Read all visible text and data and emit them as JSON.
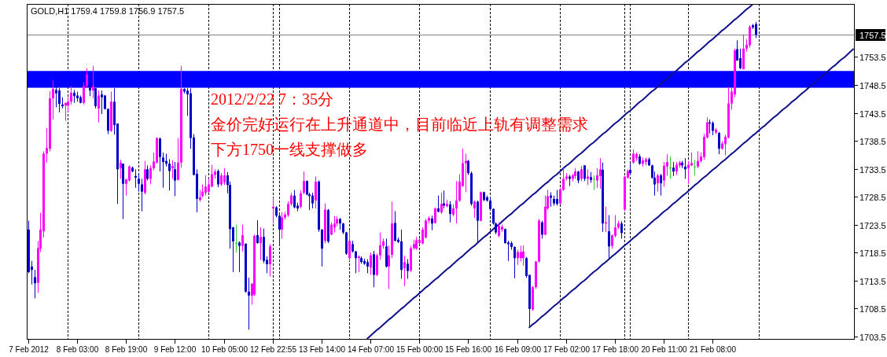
{
  "chart_data": {
    "type": "candlestick",
    "title": "GOLD,H1 1759.4 1759.8 1756.9 1757.5",
    "annotations": [
      "2012/2/22 7：35分",
      "金价完好运行在上升通道中，目前临近上轨有调整需求",
      "下方1750一线支撑做多"
    ],
    "categories": [
      "7 Feb 2012",
      null,
      null,
      null,
      null,
      null,
      null,
      null,
      null,
      null,
      null,
      null,
      null,
      null,
      null,
      null,
      "8 Feb 03:00",
      null,
      null,
      null,
      null,
      null,
      null,
      null,
      null,
      null,
      null,
      null,
      null,
      null,
      null,
      null,
      "8 Feb 19:00",
      null,
      null,
      null,
      null,
      null,
      null,
      null,
      null,
      null,
      null,
      null,
      null,
      null,
      null,
      null,
      "9 Feb 12:00",
      null,
      null,
      null,
      null,
      null,
      null,
      null,
      null,
      null,
      null,
      null,
      null,
      null,
      null,
      null,
      "10 Feb 05:00",
      null,
      null,
      null,
      null,
      null,
      null,
      null,
      null,
      null,
      null,
      null,
      null,
      null,
      null,
      null,
      "12 Feb 22:55",
      null,
      null,
      null,
      null,
      null,
      null,
      null,
      null,
      null,
      null,
      null,
      null,
      null,
      null,
      null,
      "13 Feb 14:00",
      null,
      null,
      null,
      null,
      null,
      null,
      null,
      null,
      null,
      null,
      null,
      null,
      null,
      null,
      null,
      "14 Feb 07:00",
      null,
      null,
      null,
      null,
      null,
      null,
      null,
      null,
      null,
      null,
      null,
      null,
      null,
      null,
      null,
      "15 Feb 00:00",
      null,
      null,
      null,
      null,
      null,
      null,
      null,
      null,
      null,
      null,
      null,
      null,
      null,
      null,
      null,
      "15 Feb 16:00",
      null,
      null,
      null,
      null,
      null,
      null,
      null,
      null,
      null,
      null,
      null,
      null,
      null,
      null,
      null,
      "16 Feb 09:00",
      null,
      null,
      null,
      null,
      null,
      null,
      null,
      null,
      null,
      null,
      null,
      null,
      null,
      null,
      null,
      "17 Feb 02:00",
      null,
      null,
      null,
      null,
      null,
      null,
      null,
      null,
      null,
      null,
      null,
      null,
      null,
      null,
      null,
      "17 Feb 18:00",
      null,
      null,
      null,
      null,
      null,
      null,
      null,
      null,
      null,
      null,
      null,
      null,
      null,
      null,
      null,
      "20 Feb 11:00",
      null,
      null,
      null,
      null,
      null,
      null,
      null,
      null,
      null,
      null,
      null,
      null,
      null,
      null,
      null,
      "21 Feb 08:00",
      null,
      null,
      null,
      null,
      null,
      null,
      null,
      null,
      null,
      null,
      null,
      null,
      null,
      null,
      null,
      null,
      null,
      null,
      null,
      null,
      null,
      null,
      null,
      null,
      null,
      null,
      null,
      null,
      null,
      null,
      null,
      null,
      null,
      null,
      null,
      null,
      null,
      null,
      null,
      null,
      null,
      null,
      null,
      null,
      null,
      null
    ],
    "ohlc": [
      [
        1722.6,
        1724.2,
        1714.8,
        1715.0
      ],
      [
        1716.0,
        1717.0,
        1712.8,
        1715.4
      ],
      [
        1714.1,
        1715.4,
        1710.3,
        1713.0
      ],
      [
        1713.1,
        1720.6,
        1711.3,
        1719.3
      ],
      [
        1719.2,
        1725.6,
        1718.6,
        1722.6
      ],
      [
        1722.3,
        1736.6,
        1721.2,
        1736.2
      ],
      [
        1736.2,
        1740.8,
        1734.6,
        1737.2
      ],
      [
        1737.1,
        1747.4,
        1736.6,
        1746.1
      ],
      [
        1746.1,
        1749.3,
        1742.3,
        1747.8
      ],
      [
        1747.6,
        1748.3,
        1744.5,
        1747.0
      ],
      [
        1747.5,
        1747.9,
        1743.6,
        1745.1
      ],
      [
        1745.0,
        1746.3,
        1744.3,
        1744.7
      ],
      [
        1744.8,
        1745.3,
        1742.1,
        1745.3
      ],
      [
        1744.8,
        1746.3,
        1743.7,
        1745.5
      ],
      [
        1745.5,
        1748.3,
        1745.0,
        1747.1
      ],
      [
        1747.1,
        1747.6,
        1745.3,
        1746.5
      ],
      [
        1746.6,
        1747.3,
        1745.5,
        1746.1
      ],
      [
        1746.3,
        1746.6,
        1745.2,
        1745.3
      ],
      [
        1745.3,
        1749.0,
        1745.0,
        1748.3
      ],
      [
        1748.3,
        1751.5,
        1748.0,
        1750.4
      ],
      [
        1748.0,
        1748.8,
        1746.5,
        1747.5
      ],
      [
        1747.5,
        1751.9,
        1746.1,
        1748.3
      ],
      [
        1747.9,
        1748.0,
        1744.3,
        1744.7
      ],
      [
        1744.3,
        1747.5,
        1741.8,
        1746.6
      ],
      [
        1746.8,
        1747.5,
        1743.3,
        1746.3
      ],
      [
        1746.6,
        1746.7,
        1744.1,
        1744.2
      ],
      [
        1744.2,
        1744.3,
        1739.7,
        1740.3
      ],
      [
        1740.3,
        1747.3,
        1740.1,
        1745.5
      ],
      [
        1745.5,
        1747.9,
        1739.6,
        1741.3
      ],
      [
        1741.6,
        1741.6,
        1727.2,
        1733.4
      ],
      [
        1733.6,
        1735.1,
        1731.7,
        1734.6
      ],
      [
        1734.4,
        1734.4,
        1724.5,
        1730.8
      ],
      [
        1730.8,
        1731.7,
        1728.7,
        1731.6
      ],
      [
        1731.4,
        1734.1,
        1731.2,
        1733.9
      ],
      [
        1733.7,
        1733.9,
        1732.9,
        1733.0
      ],
      [
        1732.2,
        1733.4,
        1730.1,
        1731.9
      ],
      [
        1731.7,
        1732.6,
        1729.4,
        1730.8
      ],
      [
        1730.7,
        1731.7,
        1725.9,
        1729.4
      ],
      [
        1729.2,
        1734.9,
        1728.9,
        1733.4
      ],
      [
        1733.4,
        1734.1,
        1731.4,
        1731.7
      ],
      [
        1731.7,
        1734.1,
        1730.7,
        1733.6
      ],
      [
        1733.6,
        1736.4,
        1733.2,
        1734.8
      ],
      [
        1734.6,
        1739.1,
        1734.4,
        1739.0
      ],
      [
        1738.9,
        1739.1,
        1733.0,
        1735.6
      ],
      [
        1735.5,
        1736.4,
        1730.1,
        1734.7
      ],
      [
        1734.9,
        1736.2,
        1733.9,
        1734.4
      ],
      [
        1734.4,
        1735.2,
        1729.6,
        1733.1
      ],
      [
        1733.6,
        1735.0,
        1731.7,
        1734.0
      ],
      [
        1733.4,
        1734.7,
        1728.6,
        1731.4
      ],
      [
        1731.5,
        1739.0,
        1731.4,
        1734.6
      ],
      [
        1734.6,
        1751.9,
        1733.7,
        1747.8
      ],
      [
        1747.8,
        1747.9,
        1747.0,
        1747.3
      ],
      [
        1747.5,
        1747.9,
        1743.0,
        1746.8
      ],
      [
        1747.0,
        1747.9,
        1737.1,
        1739.0
      ],
      [
        1739.1,
        1739.7,
        1732.3,
        1732.4
      ],
      [
        1732.6,
        1733.4,
        1725.7,
        1728.1
      ],
      [
        1727.9,
        1729.7,
        1727.6,
        1728.4
      ],
      [
        1728.6,
        1730.7,
        1728.4,
        1729.4
      ],
      [
        1729.2,
        1732.3,
        1728.7,
        1730.3
      ],
      [
        1729.4,
        1731.7,
        1729.2,
        1730.7
      ],
      [
        1730.3,
        1734.2,
        1730.2,
        1732.5
      ],
      [
        1732.4,
        1733.4,
        1731.7,
        1733.0
      ],
      [
        1733.1,
        1733.4,
        1730.2,
        1730.7
      ],
      [
        1730.7,
        1732.7,
        1730.4,
        1732.3
      ],
      [
        1731.1,
        1733.6,
        1730.6,
        1732.3
      ],
      [
        1732.3,
        1732.9,
        1729.1,
        1730.6
      ],
      [
        1730.6,
        1731.2,
        1719.2,
        1722.7
      ],
      [
        1723.0,
        1723.1,
        1715.0,
        1720.5
      ],
      [
        1720.2,
        1723.5,
        1718.5,
        1720.2
      ],
      [
        1720.3,
        1720.5,
        1715.0,
        1719.7
      ],
      [
        1719.7,
        1723.5,
        1718.7,
        1721.6
      ],
      [
        1720.1,
        1720.1,
        1711.3,
        1711.5
      ],
      [
        1711.5,
        1714.0,
        1704.7,
        1710.8
      ],
      [
        1710.8,
        1713.0,
        1709.2,
        1712.9
      ],
      [
        1711.0,
        1721.7,
        1710.7,
        1721.5
      ],
      [
        1721.6,
        1724.3,
        1720.1,
        1720.2
      ],
      [
        1720.2,
        1723.0,
        1717.2,
        1721.3
      ],
      [
        1721.3,
        1722.8,
        1716.6,
        1717.0
      ],
      [
        1717.2,
        1717.8,
        1714.8,
        1716.4
      ],
      [
        1716.4,
        1720.0,
        1714.2,
        1719.6
      ],
      [
        1726.4,
        1728.3,
        1723.7,
        1726.7
      ],
      [
        1726.6,
        1726.8,
        1724.8,
        1725.1
      ],
      [
        1725.1,
        1725.7,
        1719.8,
        1722.6
      ],
      [
        1722.6,
        1725.7,
        1721.0,
        1724.8
      ],
      [
        1724.8,
        1725.8,
        1724.4,
        1725.3
      ],
      [
        1725.2,
        1727.7,
        1724.9,
        1727.2
      ],
      [
        1727.2,
        1729.2,
        1726.9,
        1728.7
      ],
      [
        1728.7,
        1729.7,
        1726.4,
        1726.6
      ],
      [
        1726.9,
        1727.4,
        1725.9,
        1726.4
      ],
      [
        1726.7,
        1729.6,
        1726.4,
        1729.1
      ],
      [
        1729.2,
        1733.0,
        1728.9,
        1731.3
      ],
      [
        1731.3,
        1731.4,
        1728.7,
        1728.9
      ],
      [
        1728.9,
        1729.2,
        1726.1,
        1728.6
      ],
      [
        1728.7,
        1729.2,
        1726.4,
        1727.3
      ],
      [
        1727.8,
        1732.1,
        1726.4,
        1731.2
      ],
      [
        1731.2,
        1731.4,
        1722.2,
        1722.6
      ],
      [
        1722.6,
        1722.7,
        1716.0,
        1719.2
      ],
      [
        1720.6,
        1727.3,
        1720.2,
        1726.2
      ],
      [
        1726.1,
        1726.3,
        1720.2,
        1720.5
      ],
      [
        1721.7,
        1723.9,
        1721.6,
        1723.5
      ],
      [
        1723.0,
        1725.0,
        1722.1,
        1723.7
      ],
      [
        1723.7,
        1725.0,
        1723.2,
        1724.5
      ],
      [
        1724.5,
        1724.7,
        1722.6,
        1723.7
      ],
      [
        1723.7,
        1723.8,
        1721.8,
        1722.1
      ],
      [
        1722.1,
        1722.2,
        1718.1,
        1718.3
      ],
      [
        1717.5,
        1722.5,
        1717.0,
        1720.6
      ],
      [
        1720.0,
        1720.6,
        1718.5,
        1718.7
      ],
      [
        1718.7,
        1718.8,
        1714.8,
        1717.5
      ],
      [
        1717.5,
        1718.0,
        1715.0,
        1717.8
      ],
      [
        1717.5,
        1717.8,
        1716.5,
        1716.8
      ],
      [
        1717.0,
        1717.4,
        1716.3,
        1716.5
      ],
      [
        1716.8,
        1717.3,
        1714.8,
        1716.0
      ],
      [
        1715.8,
        1718.5,
        1714.5,
        1718.0
      ],
      [
        1718.2,
        1718.8,
        1712.3,
        1714.5
      ],
      [
        1714.5,
        1718.3,
        1714.3,
        1718.0
      ],
      [
        1718.0,
        1722.1,
        1717.2,
        1719.8
      ],
      [
        1719.7,
        1721.0,
        1719.2,
        1720.5
      ],
      [
        1719.6,
        1721.0,
        1715.8,
        1716.0
      ],
      [
        1716.0,
        1719.7,
        1712.0,
        1718.0
      ],
      [
        1718.1,
        1727.6,
        1717.5,
        1723.7
      ],
      [
        1723.8,
        1725.9,
        1720.5,
        1720.6
      ],
      [
        1720.8,
        1721.2,
        1720.2,
        1720.4
      ],
      [
        1720.5,
        1722.6,
        1713.8,
        1715.4
      ],
      [
        1715.7,
        1717.9,
        1712.5,
        1716.8
      ],
      [
        1716.5,
        1717.3,
        1713.8,
        1715.2
      ],
      [
        1715.3,
        1719.7,
        1715.0,
        1719.3
      ],
      [
        1719.3,
        1720.8,
        1719.0,
        1720.0
      ],
      [
        1719.2,
        1721.3,
        1719.0,
        1720.7
      ],
      [
        1720.2,
        1721.1,
        1720.0,
        1720.8
      ],
      [
        1720.1,
        1723.0,
        1720.0,
        1722.6
      ],
      [
        1721.2,
        1724.5,
        1721.0,
        1724.2
      ],
      [
        1724.2,
        1725.0,
        1723.7,
        1724.7
      ],
      [
        1724.6,
        1725.1,
        1722.5,
        1723.7
      ],
      [
        1723.8,
        1726.6,
        1723.7,
        1726.4
      ],
      [
        1726.4,
        1728.7,
        1725.7,
        1725.8
      ],
      [
        1725.7,
        1729.2,
        1725.4,
        1727.2
      ],
      [
        1727.3,
        1729.6,
        1726.4,
        1726.9
      ],
      [
        1726.8,
        1727.9,
        1726.6,
        1727.2
      ],
      [
        1727.1,
        1727.7,
        1723.9,
        1725.4
      ],
      [
        1725.3,
        1727.1,
        1725.0,
        1726.4
      ],
      [
        1726.4,
        1731.3,
        1723.7,
        1727.8
      ],
      [
        1727.8,
        1732.5,
        1727.6,
        1731.2
      ],
      [
        1730.4,
        1737.1,
        1730.3,
        1734.5
      ],
      [
        1734.5,
        1736.2,
        1729.3,
        1734.9
      ],
      [
        1734.9,
        1735.1,
        1732.4,
        1732.7
      ],
      [
        1732.7,
        1733.0,
        1726.9,
        1727.2
      ],
      [
        1726.4,
        1727.8,
        1724.7,
        1727.6
      ],
      [
        1727.6,
        1727.8,
        1720.3,
        1724.2
      ],
      [
        1724.2,
        1729.4,
        1724.1,
        1729.3
      ],
      [
        1729.3,
        1729.4,
        1727.7,
        1727.9
      ],
      [
        1728.4,
        1728.7,
        1727.6,
        1727.8
      ],
      [
        1727.8,
        1728.4,
        1726.1,
        1726.3
      ],
      [
        1726.3,
        1726.4,
        1723.5,
        1723.7
      ],
      [
        1723.7,
        1723.9,
        1721.8,
        1722.1
      ],
      [
        1721.5,
        1723.9,
        1721.2,
        1723.3
      ],
      [
        1722.6,
        1723.5,
        1722.2,
        1723.1
      ],
      [
        1722.7,
        1722.8,
        1720.1,
        1720.2
      ],
      [
        1720.3,
        1720.6,
        1717.0,
        1720.0
      ],
      [
        1720.2,
        1720.5,
        1719.0,
        1719.5
      ],
      [
        1719.5,
        1719.6,
        1713.9,
        1717.5
      ],
      [
        1717.5,
        1719.0,
        1716.3,
        1718.6
      ],
      [
        1717.5,
        1719.7,
        1716.9,
        1718.6
      ],
      [
        1717.5,
        1719.8,
        1716.2,
        1718.7
      ],
      [
        1717.5,
        1717.7,
        1714.0,
        1714.3
      ],
      [
        1714.5,
        1714.5,
        1705.1,
        1708.4
      ],
      [
        1708.3,
        1712.5,
        1708.1,
        1712.3
      ],
      [
        1712.3,
        1717.0,
        1712.0,
        1716.9
      ],
      [
        1716.9,
        1724.5,
        1716.7,
        1724.2
      ],
      [
        1723.9,
        1724.2,
        1721.0,
        1721.7
      ],
      [
        1721.7,
        1728.7,
        1721.6,
        1726.7
      ],
      [
        1726.4,
        1729.7,
        1726.1,
        1728.6
      ],
      [
        1728.7,
        1729.3,
        1726.7,
        1728.3
      ],
      [
        1728.1,
        1728.7,
        1726.9,
        1727.3
      ],
      [
        1728.1,
        1729.7,
        1726.9,
        1727.2
      ],
      [
        1727.3,
        1730.1,
        1727.1,
        1729.8
      ],
      [
        1729.7,
        1733.6,
        1729.6,
        1731.7
      ],
      [
        1731.7,
        1732.7,
        1731.4,
        1732.1
      ],
      [
        1732.1,
        1732.4,
        1730.4,
        1731.7
      ],
      [
        1731.7,
        1732.6,
        1731.2,
        1732.3
      ],
      [
        1732.2,
        1733.6,
        1731.7,
        1733.0
      ],
      [
        1733.0,
        1733.1,
        1730.9,
        1731.4
      ],
      [
        1731.7,
        1734.0,
        1731.3,
        1733.4
      ],
      [
        1734.1,
        1734.1,
        1731.3,
        1731.7
      ],
      [
        1731.7,
        1733.4,
        1730.6,
        1732.1
      ],
      [
        1732.0,
        1732.9,
        1731.0,
        1731.5
      ],
      [
        1731.7,
        1732.3,
        1729.7,
        1731.7
      ],
      [
        1731.4,
        1733.6,
        1730.1,
        1732.3
      ],
      [
        1732.2,
        1735.4,
        1729.9,
        1733.4
      ],
      [
        1733.3,
        1734.6,
        1722.2,
        1723.7
      ],
      [
        1723.7,
        1726.7,
        1722.2,
        1723.9
      ],
      [
        1722.3,
        1725.2,
        1717.4,
        1719.6
      ],
      [
        1719.7,
        1721.7,
        1719.2,
        1721.6
      ],
      [
        1721.5,
        1725.2,
        1721.2,
        1723.0
      ],
      [
        1723.0,
        1724.2,
        1722.7,
        1723.7
      ],
      [
        1723.7,
        1724.1,
        1721.0,
        1722.0
      ],
      [
        1726.2,
        1732.2,
        1725.9,
        1732.1
      ],
      [
        1731.9,
        1733.4,
        1731.7,
        1733.1
      ],
      [
        1733.3,
        1734.4,
        1732.4,
        1732.7
      ],
      [
        1734.6,
        1736.9,
        1734.4,
        1736.2
      ],
      [
        1735.4,
        1736.4,
        1734.9,
        1736.1
      ],
      [
        1735.7,
        1736.1,
        1734.2,
        1734.4
      ],
      [
        1734.4,
        1735.5,
        1733.9,
        1735.0
      ],
      [
        1734.7,
        1735.5,
        1734.1,
        1735.2
      ],
      [
        1735.2,
        1735.5,
        1734.0,
        1734.1
      ],
      [
        1734.1,
        1734.2,
        1731.7,
        1731.9
      ],
      [
        1731.9,
        1733.0,
        1728.7,
        1730.7
      ],
      [
        1730.9,
        1732.6,
        1729.4,
        1732.3
      ],
      [
        1732.3,
        1732.6,
        1728.7,
        1730.9
      ],
      [
        1731.4,
        1734.7,
        1730.3,
        1734.0
      ],
      [
        1733.9,
        1736.1,
        1732.3,
        1734.7
      ],
      [
        1733.7,
        1735.7,
        1731.7,
        1733.7
      ],
      [
        1733.7,
        1734.7,
        1732.2,
        1733.0
      ],
      [
        1733.0,
        1734.7,
        1732.4,
        1734.2
      ],
      [
        1734.1,
        1734.9,
        1733.7,
        1734.6
      ],
      [
        1734.6,
        1734.9,
        1733.6,
        1734.1
      ],
      [
        1733.9,
        1735.4,
        1731.7,
        1733.4
      ],
      [
        1733.6,
        1734.9,
        1730.8,
        1734.2
      ],
      [
        1734.1,
        1736.4,
        1734.0,
        1734.5
      ],
      [
        1733.9,
        1735.1,
        1732.3,
        1733.9
      ],
      [
        1733.9,
        1736.6,
        1733.6,
        1734.9
      ],
      [
        1734.9,
        1736.4,
        1734.6,
        1735.7
      ],
      [
        1735.6,
        1739.7,
        1735.1,
        1739.2
      ],
      [
        1739.1,
        1742.7,
        1738.9,
        1741.8
      ],
      [
        1741.8,
        1742.3,
        1739.8,
        1741.6
      ],
      [
        1741.7,
        1742.0,
        1739.5,
        1740.3
      ],
      [
        1740.0,
        1740.8,
        1739.7,
        1740.5
      ],
      [
        1739.9,
        1740.1,
        1736.1,
        1737.1
      ],
      [
        1737.1,
        1738.4,
        1736.9,
        1738.0
      ],
      [
        1737.9,
        1739.6,
        1735.9,
        1739.2
      ],
      [
        1739.1,
        1748.1,
        1738.9,
        1745.2
      ],
      [
        1745.2,
        1748.0,
        1744.1,
        1747.3
      ],
      [
        1746.8,
        1755.0,
        1746.3,
        1754.7
      ],
      [
        1754.9,
        1756.5,
        1752.8,
        1752.9
      ],
      [
        1753.3,
        1755.0,
        1751.3,
        1751.5
      ],
      [
        1751.3,
        1757.5,
        1751.3,
        1755.0
      ],
      [
        1755.0,
        1756.7,
        1754.5,
        1755.7
      ],
      [
        1755.6,
        1759.2,
        1755.2,
        1758.9
      ],
      [
        1759.2,
        1759.4,
        1758.5,
        1758.8
      ],
      [
        1759.4,
        1759.8,
        1756.9,
        1757.5
      ],
      null,
      null,
      null,
      null,
      null,
      null,
      null,
      null,
      null,
      null,
      null,
      null,
      null,
      null,
      null,
      null,
      null,
      null,
      null,
      null,
      null,
      null,
      null,
      null,
      null,
      null,
      null,
      null,
      null,
      null,
      null,
      null
    ],
    "colors": [
      "#0000c8",
      "#0000c8",
      "#0000c8",
      "#ff00ff",
      "#ff00ff",
      "#ff00ff",
      "#ff00ff",
      "#ff00ff",
      "#ff00ff",
      "#0000c8",
      "#0000c8",
      "#0000c8",
      "#ff00ff",
      "#ff00ff",
      "#ff00ff",
      "#0000c8",
      "#0000c8",
      "#0000c8",
      "#ff00ff",
      "#ff00ff",
      "#0000c8",
      "#ff00ff",
      "#0000c8",
      "#ff00ff",
      "#0000c8",
      "#0000c8",
      "#0000c8",
      "#ff00ff",
      "#0000c8",
      "#0000c8",
      "#ff00ff",
      "#0000c8",
      "#ff00ff",
      "#ff00ff",
      "#0000c8",
      "#0000c8",
      "#0000c8",
      "#0000c8",
      "#ff00ff",
      "#0000c8",
      "#ff00ff",
      "#ff00ff",
      "#ff00ff",
      "#0000c8",
      "#0000c8",
      "#0000c8",
      "#0000c8",
      "#ff00ff",
      "#0000c8",
      "#ff00ff",
      "#ff00ff",
      "#0000c8",
      "#0000c8",
      "#0000c8",
      "#0000c8",
      "#0000c8",
      "#ff00ff",
      "#ff00ff",
      "#ff00ff",
      "#ff00ff",
      "#ff00ff",
      "#ff00ff",
      "#0000c8",
      "#ff00ff",
      "#ff00ff",
      "#0000c8",
      "#0000c8",
      "#0000c8",
      "#33cc33",
      "#0000c8",
      "#ff00ff",
      "#0000c8",
      "#0000c8",
      "#ff00ff",
      "#ff00ff",
      "#0000c8",
      "#ff00ff",
      "#0000c8",
      "#0000c8",
      "#ff00ff",
      "#ff00ff",
      "#0000c8",
      "#0000c8",
      "#ff00ff",
      "#ff00ff",
      "#ff00ff",
      "#ff00ff",
      "#0000c8",
      "#0000c8",
      "#ff00ff",
      "#ff00ff",
      "#0000c8",
      "#0000c8",
      "#0000c8",
      "#ff00ff",
      "#0000c8",
      "#0000c8",
      "#ff00ff",
      "#0000c8",
      "#ff00ff",
      "#ff00ff",
      "#ff00ff",
      "#0000c8",
      "#0000c8",
      "#0000c8",
      "#ff00ff",
      "#0000c8",
      "#0000c8",
      "#ff00ff",
      "#0000c8",
      "#0000c8",
      "#0000c8",
      "#ff00ff",
      "#0000c8",
      "#ff00ff",
      "#ff00ff",
      "#ff00ff",
      "#0000c8",
      "#ff00ff",
      "#ff00ff",
      "#0000c8",
      "#0000c8",
      "#0000c8",
      "#ff00ff",
      "#0000c8",
      "#ff00ff",
      "#ff00ff",
      "#ff00ff",
      "#ff00ff",
      "#ff00ff",
      "#ff00ff",
      "#ff00ff",
      "#0000c8",
      "#ff00ff",
      "#0000c8",
      "#ff00ff",
      "#0000c8",
      "#ff00ff",
      "#0000c8",
      "#ff00ff",
      "#ff00ff",
      "#ff00ff",
      "#ff00ff",
      "#ff00ff",
      "#0000c8",
      "#0000c8",
      "#ff00ff",
      "#0000c8",
      "#ff00ff",
      "#0000c8",
      "#0000c8",
      "#0000c8",
      "#0000c8",
      "#0000c8",
      "#ff00ff",
      "#ff00ff",
      "#0000c8",
      "#0000c8",
      "#0000c8",
      "#0000c8",
      "#ff00ff",
      "#ff00ff",
      "#ff00ff",
      "#0000c8",
      "#0000c8",
      "#ff00ff",
      "#ff00ff",
      "#ff00ff",
      "#0000c8",
      "#ff00ff",
      "#ff00ff",
      "#0000c8",
      "#0000c8",
      "#0000c8",
      "#ff00ff",
      "#ff00ff",
      "#ff00ff",
      "#0000c8",
      "#ff00ff",
      "#ff00ff",
      "#0000c8",
      "#ff00ff",
      "#0000c8",
      "#ff00ff",
      "#0000c8",
      "#33cc33",
      "#ff00ff",
      "#ff00ff",
      "#0000c8",
      "#ff00ff",
      "#0000c8",
      "#ff00ff",
      "#ff00ff",
      "#ff00ff",
      "#0000c8",
      "#ff00ff",
      "#ff00ff",
      "#0000c8",
      "#ff00ff",
      "#ff00ff",
      "#0000c8",
      "#ff00ff",
      "#ff00ff",
      "#0000c8",
      "#0000c8",
      "#0000c8",
      "#ff00ff",
      "#0000c8",
      "#ff00ff",
      "#ff00ff",
      "#33cc33",
      "#0000c8",
      "#ff00ff",
      "#ff00ff",
      "#0000c8",
      "#0000c8",
      "#ff00ff",
      "#ff00ff",
      "#33cc33",
      "#ff00ff",
      "#ff00ff",
      "#ff00ff",
      "#ff00ff",
      "#0000c8",
      "#0000c8",
      "#ff00ff",
      "#0000c8",
      "#ff00ff",
      "#ff00ff",
      "#ff00ff",
      "#ff00ff",
      "#ff00ff",
      "#0000c8",
      "#0000c8",
      "#ff00ff",
      "#ff00ff",
      "#ff00ff",
      "#0000c8",
      "#0000c8",
      null,
      null,
      null,
      null,
      null,
      null,
      null,
      null,
      null,
      null,
      null,
      null,
      null,
      null,
      null,
      null,
      null,
      null,
      null,
      null,
      null,
      null,
      null,
      null,
      null,
      null,
      null,
      null,
      null,
      null,
      null,
      null
    ],
    "series": [
      {
        "type": "line",
        "color": "#10108c",
        "values": [
          null,
          null,
          null,
          null,
          null,
          null,
          null,
          null,
          null,
          null,
          null,
          null,
          null,
          null,
          null,
          null,
          null,
          null,
          null,
          null,
          null,
          null,
          null,
          null,
          null,
          null,
          null,
          null,
          null,
          null,
          null,
          null,
          null,
          null,
          null,
          null,
          null,
          null,
          null,
          null,
          null,
          null,
          null,
          null,
          null,
          null,
          null,
          null,
          null,
          null,
          null,
          null,
          null,
          null,
          null,
          null,
          null,
          null,
          null,
          null,
          null,
          null,
          null,
          null,
          null,
          null,
          null,
          null,
          null,
          null,
          null,
          null,
          null,
          null,
          null,
          null,
          null,
          null,
          null,
          null,
          null,
          null,
          null,
          null,
          null,
          null,
          null,
          null,
          null,
          null,
          null,
          null,
          null,
          null,
          null,
          null,
          null,
          null,
          null,
          null,
          null,
          null,
          null,
          null,
          null,
          null,
          null,
          null,
          null,
          null,
          null,
          1703.1,
          1703.6,
          1704.1,
          1704.6,
          1705.0,
          1705.5,
          1706.0,
          1706.5,
          1706.9,
          1707.4,
          1707.9,
          1708.4,
          1708.8,
          1709.3,
          1709.8,
          1710.3,
          1710.7,
          1711.2,
          1711.7,
          1712.2,
          1712.6,
          1713.1,
          1713.6,
          1714.0,
          1714.5,
          1715.0,
          1715.5,
          1715.9,
          1716.4,
          1716.9,
          1717.4,
          1717.8,
          1718.3,
          1718.8,
          1719.3,
          1719.7,
          1720.2,
          1720.7,
          1721.2,
          1721.6,
          1722.1,
          1722.6,
          1723.1,
          1723.5,
          1724.0,
          1724.5,
          1725.0,
          1725.4,
          1725.9,
          1726.4,
          1726.9,
          1727.3,
          1727.8,
          1728.3,
          1728.8,
          1729.2,
          1729.7,
          1730.2,
          1730.7,
          1731.1,
          1731.6,
          1732.1,
          1732.5,
          1733.0,
          1733.5,
          1734.0,
          1734.4,
          1734.9,
          1735.4,
          1735.9,
          1736.3,
          1736.8,
          1737.3,
          1737.8,
          1738.2,
          1738.7,
          1739.2,
          1739.7,
          1740.1,
          1740.6,
          1741.1,
          1741.6,
          1742.0,
          1742.5,
          1743.0,
          1743.5,
          1743.9,
          1744.4,
          1744.9,
          1745.4,
          1745.8,
          1746.3,
          1746.8,
          1747.3,
          1747.7,
          1748.2,
          1748.7,
          1749.1,
          1749.6,
          1750.1,
          1750.6,
          1751.0,
          1751.5,
          1752.0,
          1752.5,
          1752.9,
          1753.4,
          1753.9,
          1754.4,
          1754.8,
          1755.3,
          1755.8,
          1756.3,
          1756.7,
          1757.2,
          1757.7,
          1758.2,
          1758.6,
          1759.1,
          1759.6,
          1760.1,
          1760.5,
          1761.0,
          1761.5,
          1762.0,
          1762.4,
          1762.9,
          null,
          null,
          null,
          null,
          null,
          null,
          null,
          null,
          null,
          null,
          null,
          null,
          null,
          null,
          null,
          null,
          null,
          null,
          null,
          null,
          null,
          null,
          null,
          null,
          null,
          null,
          null,
          null,
          null,
          null,
          null,
          null,
          null
        ]
      },
      {
        "type": "line",
        "color": "#10108c",
        "values": [
          null,
          null,
          null,
          null,
          null,
          null,
          null,
          null,
          null,
          null,
          null,
          null,
          null,
          null,
          null,
          null,
          null,
          null,
          null,
          null,
          null,
          null,
          null,
          null,
          null,
          null,
          null,
          null,
          null,
          null,
          null,
          null,
          null,
          null,
          null,
          null,
          null,
          null,
          null,
          null,
          null,
          null,
          null,
          null,
          null,
          null,
          null,
          null,
          null,
          null,
          null,
          null,
          null,
          null,
          null,
          null,
          null,
          null,
          null,
          null,
          null,
          null,
          null,
          null,
          null,
          null,
          null,
          null,
          null,
          null,
          null,
          null,
          null,
          null,
          null,
          null,
          null,
          null,
          null,
          null,
          null,
          null,
          null,
          null,
          null,
          null,
          null,
          null,
          null,
          null,
          null,
          null,
          null,
          null,
          null,
          null,
          null,
          null,
          null,
          null,
          null,
          null,
          null,
          null,
          null,
          null,
          null,
          null,
          null,
          null,
          null,
          null,
          null,
          null,
          null,
          null,
          null,
          null,
          null,
          null,
          null,
          null,
          null,
          null,
          null,
          null,
          null,
          null,
          null,
          null,
          null,
          null,
          null,
          null,
          null,
          null,
          null,
          null,
          null,
          null,
          null,
          null,
          null,
          null,
          null,
          null,
          null,
          null,
          null,
          null,
          null,
          null,
          null,
          null,
          null,
          null,
          null,
          null,
          null,
          null,
          null,
          null,
          null,
          null,
          1705.1,
          1705.6,
          1706.0,
          1706.5,
          1707.0,
          1707.4,
          1707.9,
          1708.4,
          1708.9,
          1709.3,
          1709.8,
          1710.3,
          1710.7,
          1711.2,
          1711.7,
          1712.1,
          1712.6,
          1713.1,
          1713.5,
          1714.0,
          1714.5,
          1715.0,
          1715.4,
          1715.9,
          1716.4,
          1716.8,
          1717.3,
          1717.8,
          1718.2,
          1718.7,
          1719.2,
          1719.7,
          1720.1,
          1720.6,
          1721.1,
          1721.5,
          1722.0,
          1722.5,
          1722.9,
          1723.4,
          1723.9,
          1724.4,
          1724.8,
          1725.3,
          1725.8,
          1726.2,
          1726.7,
          1727.2,
          1727.6,
          1728.1,
          1728.6,
          1729.0,
          1729.5,
          1730.0,
          1730.5,
          1730.9,
          1731.4,
          1731.9,
          1732.3,
          1732.8,
          1733.3,
          1733.7,
          1734.2,
          1734.7,
          1735.1,
          1735.6,
          1736.1,
          1736.5,
          1737.0,
          1737.5,
          1738.0,
          1738.4,
          1738.9,
          1739.4,
          1739.8,
          1740.3,
          1740.8,
          1741.2,
          1741.7,
          1742.2,
          1742.7,
          1743.1,
          1743.6,
          1744.1,
          1744.5,
          1745.0,
          1745.5,
          1745.9,
          1746.4,
          1746.9,
          1747.3,
          1747.8,
          1748.3,
          1748.8,
          1749.2,
          1749.7,
          1750.2,
          1750.6,
          1751.1,
          1751.6,
          1752.0,
          1752.5,
          1753.0,
          1753.4,
          1753.9,
          1754.4,
          1754.9
        ]
      }
    ],
    "ylim": [
      1702.9,
      1763.0
    ],
    "yticks": [
      1703.5,
      1708.5,
      1713.5,
      1718.5,
      1723.5,
      1728.5,
      1733.5,
      1738.5,
      1743.5,
      1748.5,
      1753.5
    ],
    "ref_lines": [
      {
        "axis": "y",
        "value": 1757.5,
        "label": "1757.5",
        "color": "#808080"
      }
    ],
    "bands": [
      {
        "axis": "y",
        "from": 1748,
        "to": 1751,
        "color": "#0000ff"
      }
    ]
  }
}
